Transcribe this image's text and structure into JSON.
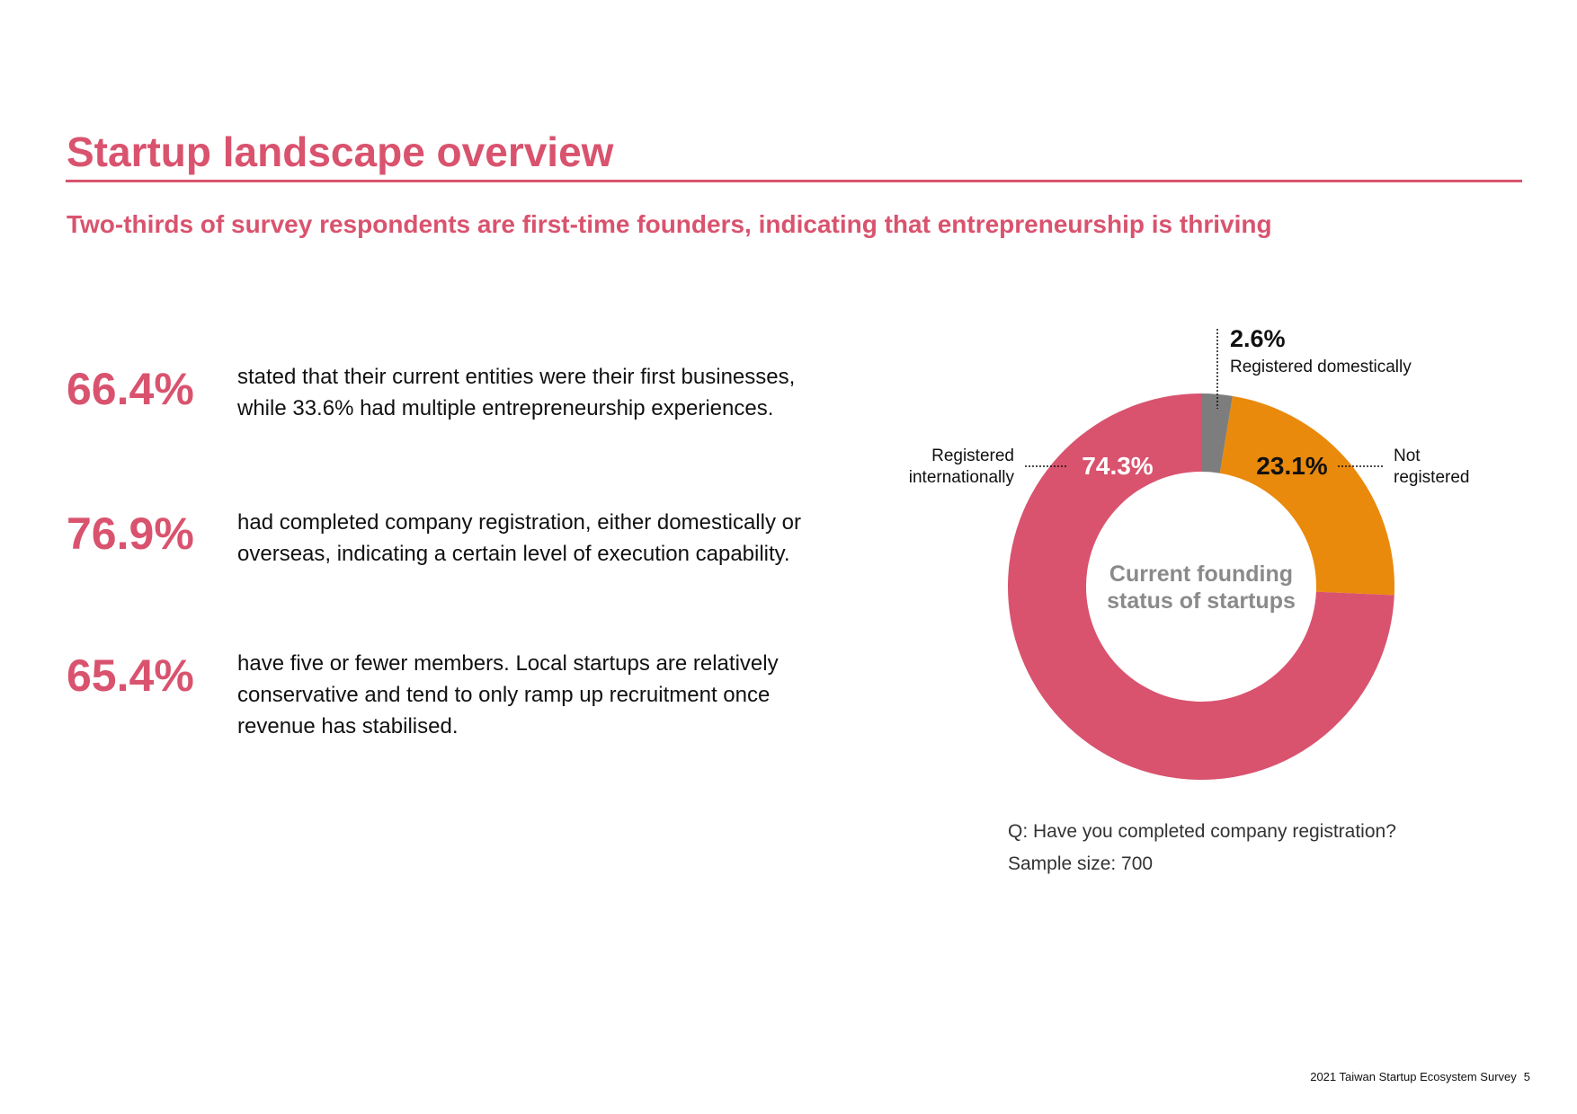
{
  "header": {
    "title": "Startup landscape overview",
    "subtitle": "Two-thirds of survey respondents are first-time founders, indicating that entrepreneurship is thriving"
  },
  "stats": [
    {
      "value": "66.4%",
      "text": "stated that their current entities were their first businesses, while 33.6% had multiple entrepreneurship experiences."
    },
    {
      "value": "76.9%",
      "text": "had completed company registration, either domestically or overseas, indicating a certain level of execution capability."
    },
    {
      "value": "65.4%",
      "text": "have five or fewer members. Local startups are relatively conservative and tend to only ramp up recruitment once revenue has stabilised."
    }
  ],
  "chart_data": {
    "type": "pie",
    "variant": "donut",
    "center_label": [
      "Current founding",
      "status of startups"
    ],
    "slices": [
      {
        "label": [
          "Registered",
          "domestically"
        ],
        "value": 2.6,
        "value_label": "2.6%",
        "color": "#7d7d7d"
      },
      {
        "label": [
          "Not",
          "registered"
        ],
        "value": 23.1,
        "value_label": "23.1%",
        "color": "#e98a0c"
      },
      {
        "label": [
          "Registered",
          "internationally"
        ],
        "value": 74.3,
        "value_label": "74.3%",
        "color": "#d9536e"
      }
    ]
  },
  "caption": {
    "question": "Q: Have you completed company registration?",
    "sample": "Sample size: 700"
  },
  "footer": {
    "source": "2021 Taiwan Startup Ecosystem Survey",
    "page": "5"
  }
}
